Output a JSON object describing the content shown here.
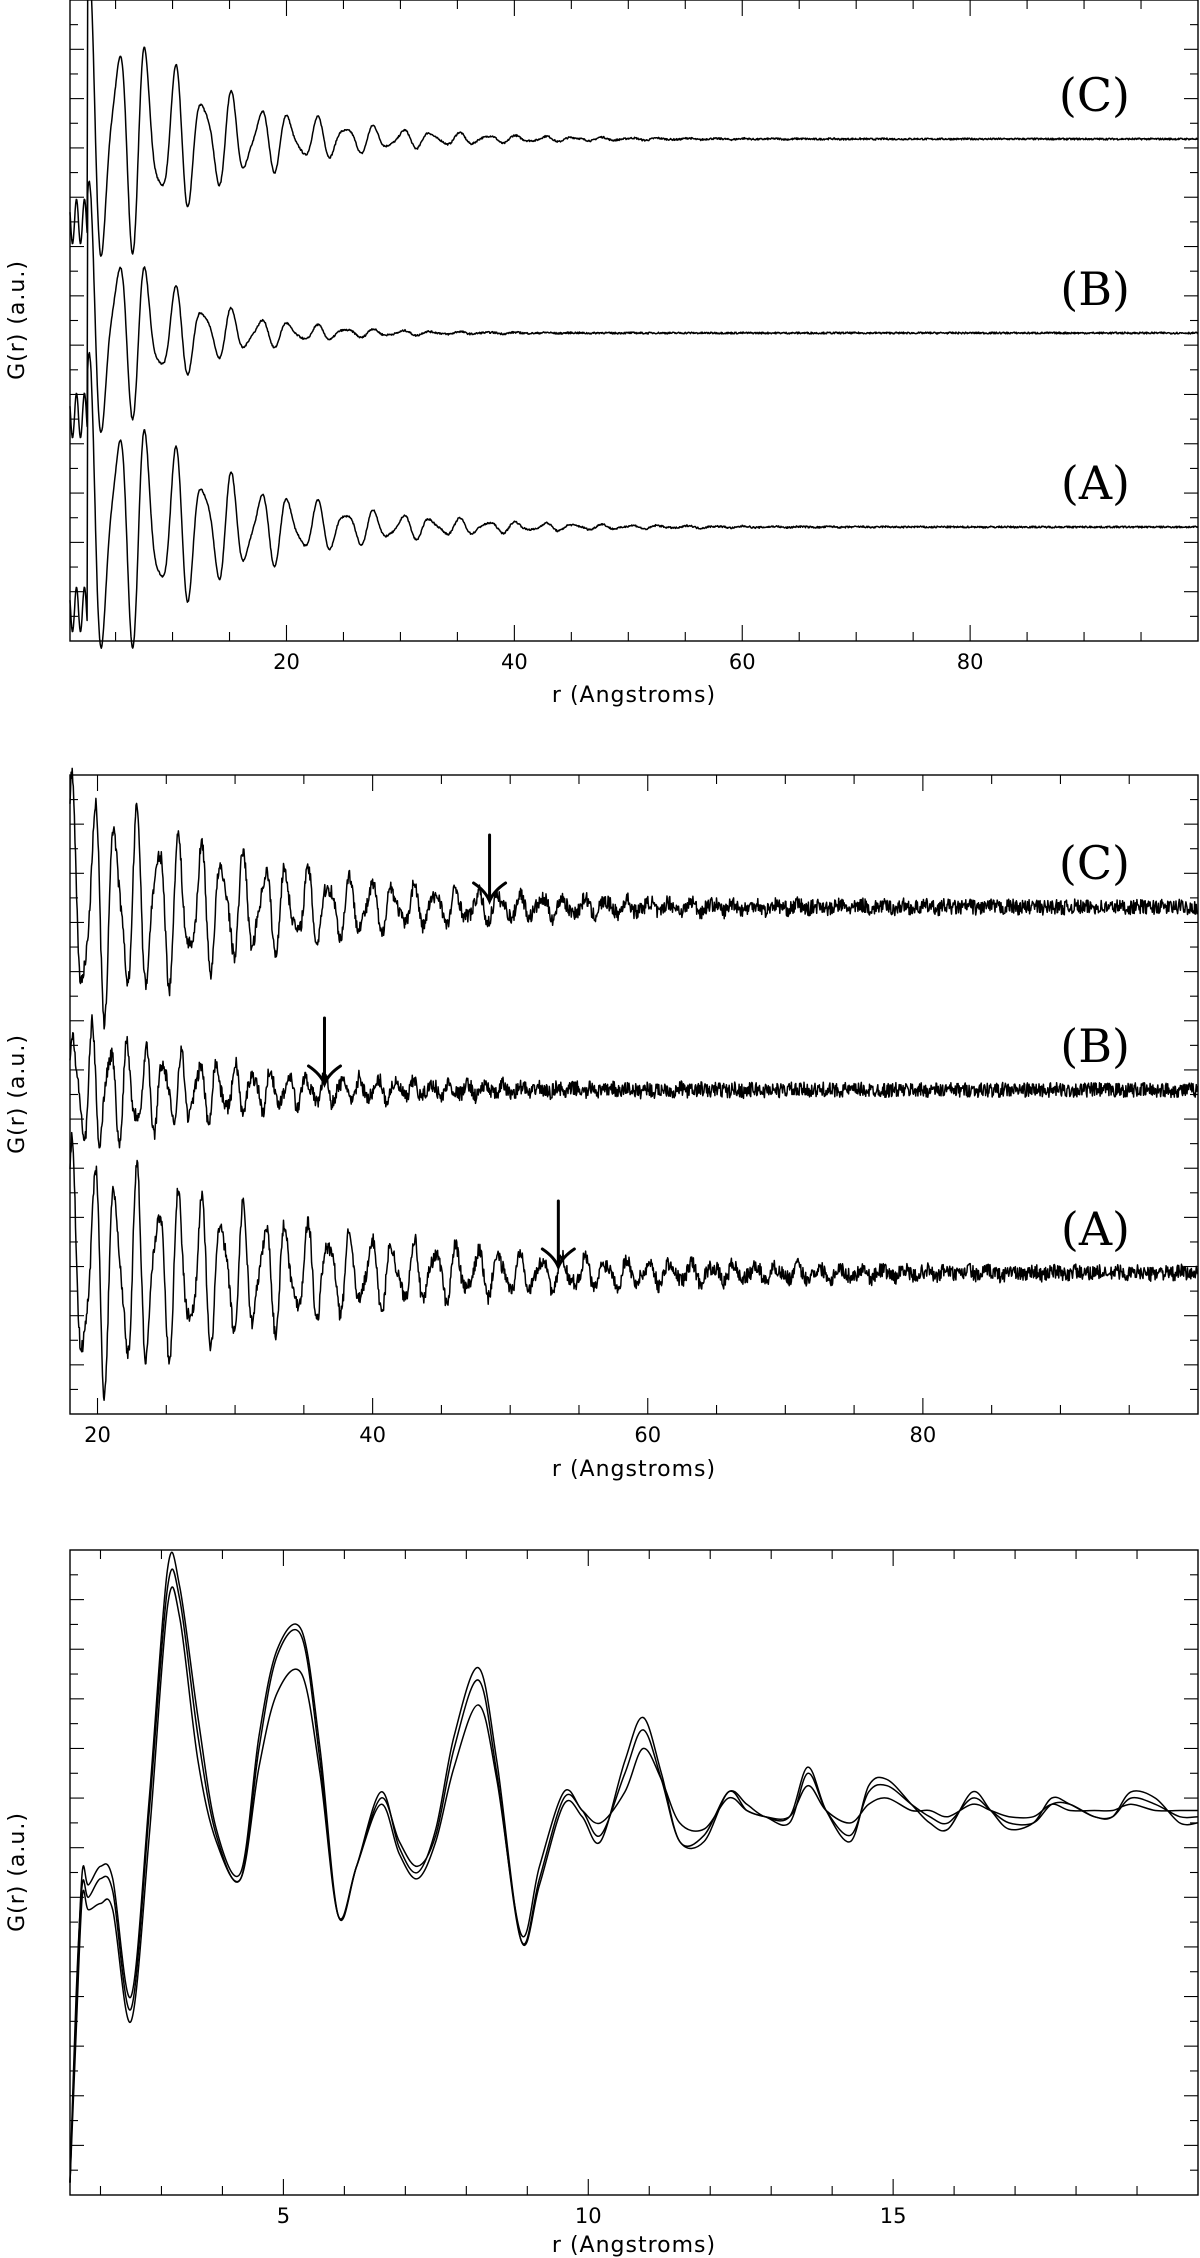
{
  "chart_data": [
    {
      "type": "line",
      "xlabel": "r (Angstroms)",
      "ylabel": "G(r) (a.u.)",
      "xlim": [
        1,
        100
      ],
      "xticks": [
        "20",
        "40",
        "60",
        "80"
      ],
      "xtick_values": [
        20,
        40,
        60,
        80
      ],
      "series": [
        {
          "name": "(C)",
          "model": {
            "amp": 1.0,
            "decay": 10,
            "period": 2.5,
            "noise": 0.003
          }
        },
        {
          "name": "(B)",
          "model": {
            "amp": 0.95,
            "decay": 7,
            "period": 2.5,
            "noise": 0.003
          }
        },
        {
          "name": "(A)",
          "model": {
            "amp": 1.0,
            "decay": 11,
            "period": 2.5,
            "noise": 0.003
          }
        }
      ]
    },
    {
      "type": "line",
      "xlabel": "r (Angstroms)",
      "ylabel": "G(r) (a.u.)",
      "xlim": [
        18,
        100
      ],
      "xticks": [
        "20",
        "40",
        "60",
        "80"
      ],
      "xtick_values": [
        20,
        40,
        60,
        80
      ],
      "series": [
        {
          "name": "(C)",
          "arrow_x": 48.5,
          "model": {
            "amp": 1.0,
            "decay": 14,
            "period": 1.55,
            "noise": 0.035
          }
        },
        {
          "name": "(B)",
          "arrow_x": 36.5,
          "model": {
            "amp": 0.55,
            "decay": 12,
            "period": 1.3,
            "noise": 0.035
          }
        },
        {
          "name": "(A)",
          "arrow_x": 53.5,
          "model": {
            "amp": 1.0,
            "decay": 18,
            "period": 1.55,
            "noise": 0.035
          }
        }
      ]
    },
    {
      "type": "line",
      "xlabel": "r (Angstroms)",
      "ylabel": "G(r) (a.u.)",
      "xlim": [
        1.5,
        20
      ],
      "ylim": [
        -6.2,
        4.2
      ],
      "xticks": [
        "5",
        "10",
        "15"
      ],
      "xtick_values": [
        5,
        10,
        15
      ],
      "series": [
        {
          "name": "",
          "x": [
            1.5,
            1.6,
            1.7,
            1.8,
            2.0,
            2.2,
            2.5,
            2.8,
            3.1,
            3.3,
            3.6,
            3.9,
            4.3,
            4.6,
            4.9,
            5.3,
            5.6,
            5.9,
            6.2,
            6.6,
            6.9,
            7.2,
            7.5,
            7.8,
            8.2,
            8.5,
            8.9,
            9.2,
            9.6,
            9.9,
            10.2,
            10.6,
            10.9,
            11.2,
            11.5,
            11.9,
            12.3,
            12.6,
            12.9,
            13.3,
            13.6,
            13.9,
            14.3,
            14.6,
            14.9,
            15.3,
            15.6,
            15.9,
            16.3,
            16.6,
            16.9,
            17.3,
            17.6,
            17.9,
            18.3,
            18.6,
            18.9,
            19.3,
            19.7,
            20.0
          ],
          "y": [
            -6.0,
            -3.2,
            -1.0,
            -1.2,
            -0.9,
            -1.1,
            -3.0,
            0.2,
            3.9,
            3.6,
            1.5,
            -0.3,
            -1.0,
            1.2,
            2.6,
            2.9,
            1.0,
            -1.7,
            -0.9,
            0.3,
            -0.6,
            -1.0,
            -0.3,
            1.2,
            2.3,
            0.8,
            -2.1,
            -1.2,
            0.1,
            -0.1,
            -0.5,
            0.8,
            1.5,
            0.6,
            -0.5,
            -0.4,
            0.3,
            0.1,
            -0.1,
            -0.1,
            0.7,
            0.0,
            -0.5,
            0.4,
            0.5,
            0.1,
            -0.2,
            -0.3,
            0.3,
            0.0,
            -0.3,
            -0.2,
            0.2,
            0.1,
            -0.1,
            -0.1,
            0.3,
            0.2,
            -0.2,
            -0.2
          ]
        },
        {
          "name": "",
          "x": [
            1.5,
            1.6,
            1.7,
            1.8,
            2.0,
            2.2,
            2.5,
            2.8,
            3.1,
            3.3,
            3.6,
            3.9,
            4.3,
            4.6,
            4.9,
            5.3,
            5.6,
            5.9,
            6.2,
            6.6,
            6.9,
            7.2,
            7.5,
            7.8,
            8.2,
            8.5,
            8.9,
            9.2,
            9.6,
            9.9,
            10.2,
            10.6,
            10.9,
            11.2,
            11.5,
            11.9,
            12.3,
            12.6,
            12.9,
            13.3,
            13.6,
            13.9,
            14.3,
            14.6,
            14.9,
            15.3,
            15.6,
            15.9,
            16.3,
            16.6,
            16.9,
            17.3,
            17.6,
            17.9,
            18.3,
            18.6,
            18.9,
            19.3,
            19.7,
            20.0
          ],
          "y": [
            -6.0,
            -3.0,
            -1.2,
            -1.4,
            -1.1,
            -1.3,
            -3.2,
            0.0,
            3.6,
            3.4,
            1.2,
            -0.4,
            -1.1,
            1.0,
            2.5,
            2.8,
            0.8,
            -1.7,
            -0.9,
            0.2,
            -0.5,
            -0.9,
            -0.4,
            1.0,
            2.1,
            0.6,
            -2.1,
            -1.1,
            0.2,
            0.0,
            -0.4,
            0.6,
            1.3,
            0.5,
            -0.5,
            -0.5,
            0.3,
            0.0,
            -0.1,
            -0.2,
            0.6,
            0.0,
            -0.4,
            0.3,
            0.4,
            0.1,
            -0.1,
            -0.2,
            0.2,
            0.0,
            -0.2,
            -0.2,
            0.1,
            0.1,
            -0.1,
            -0.1,
            0.2,
            0.1,
            -0.1,
            -0.1
          ]
        },
        {
          "name": "",
          "x": [
            1.5,
            1.6,
            1.7,
            1.8,
            2.0,
            2.2,
            2.5,
            2.8,
            3.1,
            3.3,
            3.6,
            3.9,
            4.3,
            4.6,
            4.9,
            5.3,
            5.6,
            5.9,
            6.2,
            6.6,
            6.9,
            7.2,
            7.5,
            7.8,
            8.2,
            8.5,
            8.9,
            9.2,
            9.6,
            9.9,
            10.2,
            10.6,
            10.9,
            11.2,
            11.5,
            11.9,
            12.3,
            12.6,
            12.9,
            13.3,
            13.6,
            13.9,
            14.3,
            14.6,
            14.9,
            15.3,
            15.6,
            15.9,
            16.3,
            16.6,
            16.9,
            17.3,
            17.6,
            17.9,
            18.3,
            18.6,
            18.9,
            19.3,
            19.7,
            20.0
          ],
          "y": [
            -6.0,
            -3.6,
            -1.4,
            -1.6,
            -1.5,
            -1.6,
            -3.4,
            -0.4,
            3.3,
            3.1,
            0.8,
            -0.5,
            -1.1,
            0.7,
            1.9,
            2.2,
            0.6,
            -1.7,
            -0.9,
            0.1,
            -0.7,
            -1.1,
            -0.5,
            0.7,
            1.7,
            0.5,
            -2.0,
            -0.9,
            0.3,
            0.0,
            -0.2,
            0.3,
            1.0,
            0.5,
            -0.2,
            -0.3,
            0.2,
            0.0,
            -0.1,
            -0.1,
            0.4,
            0.0,
            -0.2,
            0.1,
            0.2,
            0.0,
            0.0,
            -0.1,
            0.1,
            0.0,
            -0.1,
            -0.1,
            0.1,
            0.0,
            0.0,
            0.0,
            0.1,
            0.0,
            0.0,
            0.0
          ]
        }
      ]
    }
  ]
}
